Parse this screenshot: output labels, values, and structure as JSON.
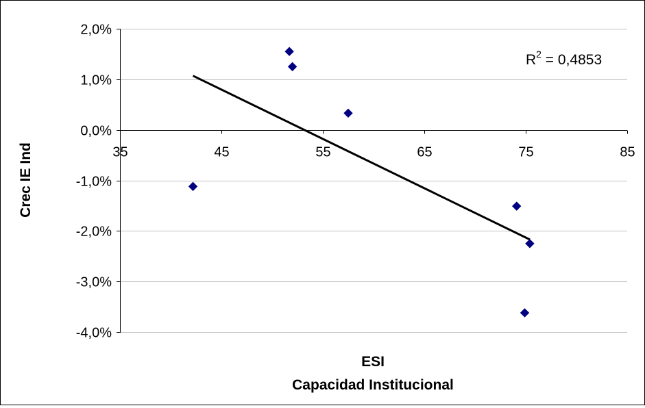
{
  "chart_data": {
    "type": "scatter",
    "xlabel_lines": [
      "ESI",
      "Capacidad Institucional"
    ],
    "ylabel": "Crec IE Ind",
    "xlim": [
      35,
      85
    ],
    "ylim": [
      -0.04,
      0.02
    ],
    "x_ticks": [
      35,
      45,
      55,
      65,
      75,
      85
    ],
    "x_tick_labels": [
      "35",
      "45",
      "55",
      "65",
      "75",
      "85"
    ],
    "y_ticks": [
      0.02,
      0.01,
      0,
      -0.01,
      -0.02,
      -0.03,
      -0.04
    ],
    "y_tick_labels": [
      "2,0%",
      "1,0%",
      "0,0%",
      "-1,0%",
      "-2,0%",
      "-3,0%",
      "-4,0%"
    ],
    "grid": "horizontal",
    "points": [
      {
        "x": 42.2,
        "y": -0.0112
      },
      {
        "x": 51.7,
        "y": 0.0155
      },
      {
        "x": 52.0,
        "y": 0.0125
      },
      {
        "x": 57.5,
        "y": 0.0033
      },
      {
        "x": 74.1,
        "y": -0.0151
      },
      {
        "x": 75.4,
        "y": -0.0225
      },
      {
        "x": 74.9,
        "y": -0.0362
      }
    ],
    "marker_color": "#000080",
    "trendline": {
      "x": [
        42.2,
        75.4
      ],
      "y": [
        0.0107,
        -0.0217
      ],
      "color": "#000000"
    },
    "r_squared_label": {
      "prefix": "R",
      "superscript": "2",
      "suffix": " = 0,4853"
    }
  }
}
